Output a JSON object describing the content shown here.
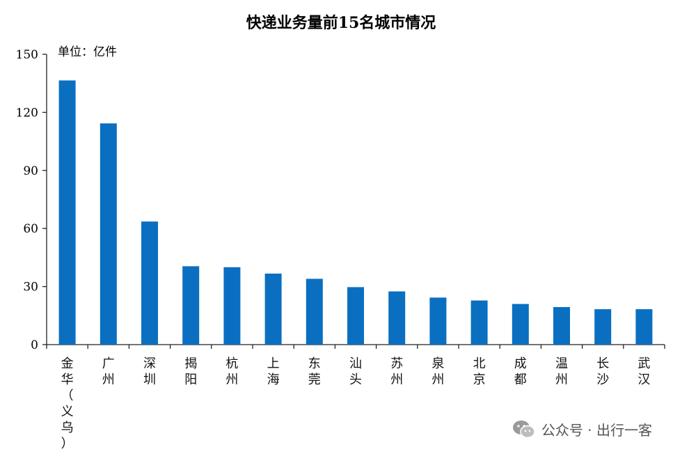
{
  "chart_data": {
    "type": "bar",
    "title": "快递业务量前15名城市情况",
    "unit_label": "单位：亿件",
    "ylim": [
      0,
      150
    ],
    "yticks": [
      0,
      30,
      60,
      90,
      120,
      150
    ],
    "categories": [
      "金华（义乌）",
      "广州",
      "深圳",
      "揭阳",
      "杭州",
      "上海",
      "东莞",
      "汕头",
      "苏州",
      "泉州",
      "北京",
      "成都",
      "温州",
      "长沙",
      "武汉"
    ],
    "values": [
      136.5,
      114.3,
      63.6,
      40.5,
      40.0,
      36.7,
      34.0,
      29.7,
      27.5,
      24.3,
      22.8,
      21.0,
      19.4,
      18.3,
      18.3
    ],
    "bar_color": "#0a6fc1",
    "grid": false,
    "legend": "none"
  },
  "watermark": {
    "icon": "wechat-icon",
    "text": "公众号 · 出行一客"
  }
}
